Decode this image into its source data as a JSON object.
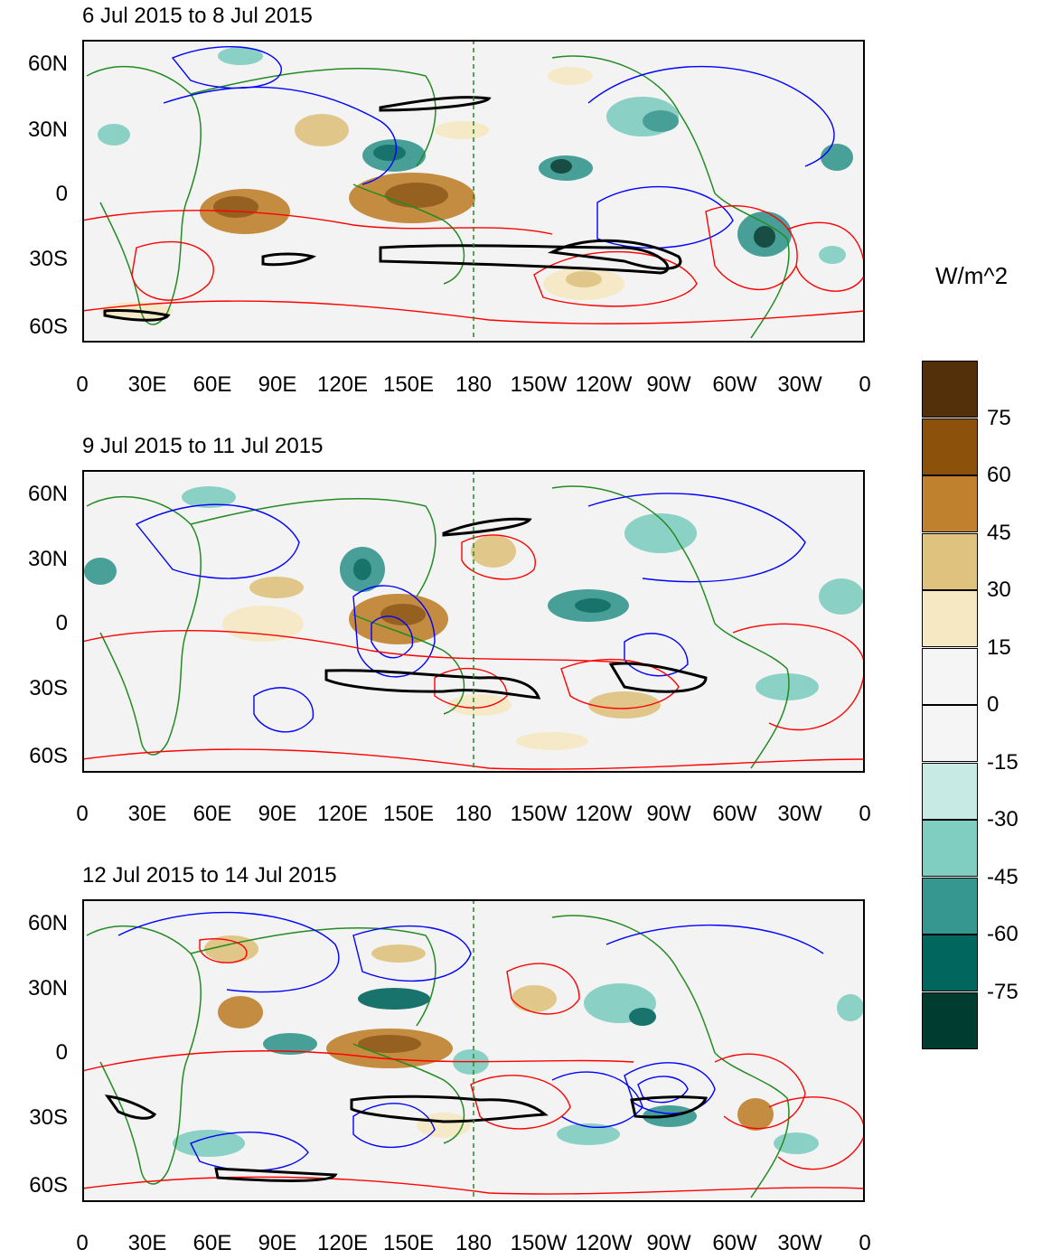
{
  "figure": {
    "panels": [
      {
        "title": "6 Jul 2015 to 8 Jul 2015"
      },
      {
        "title": "9 Jul 2015 to 11 Jul 2015"
      },
      {
        "title": "12 Jul 2015 to 14 Jul 2015"
      }
    ],
    "lat_labels": [
      "60N",
      "30N",
      "0",
      "30S",
      "60S"
    ],
    "lon_labels": [
      "0",
      "30E",
      "60E",
      "90E",
      "120E",
      "150E",
      "180",
      "150W",
      "120W",
      "90W",
      "60W",
      "30W",
      "0"
    ],
    "colorbar": {
      "title": "W/m^2",
      "levels": [
        "75",
        "60",
        "45",
        "30",
        "15",
        "0",
        "-15",
        "-30",
        "-45",
        "-60",
        "-75"
      ],
      "colors": [
        "#54300a",
        "#8c510a",
        "#bf812d",
        "#dfc27d",
        "#f6e8c3",
        "#f5f5f5",
        "#f5f5f5",
        "#c7eae5",
        "#80cdc1",
        "#35978f",
        "#01665e",
        "#003c30"
      ]
    },
    "contour_colors": {
      "positive": "#ff0000",
      "negative": "#0000ff",
      "coast": "#228b22",
      "zero_line": "#000000"
    }
  }
}
